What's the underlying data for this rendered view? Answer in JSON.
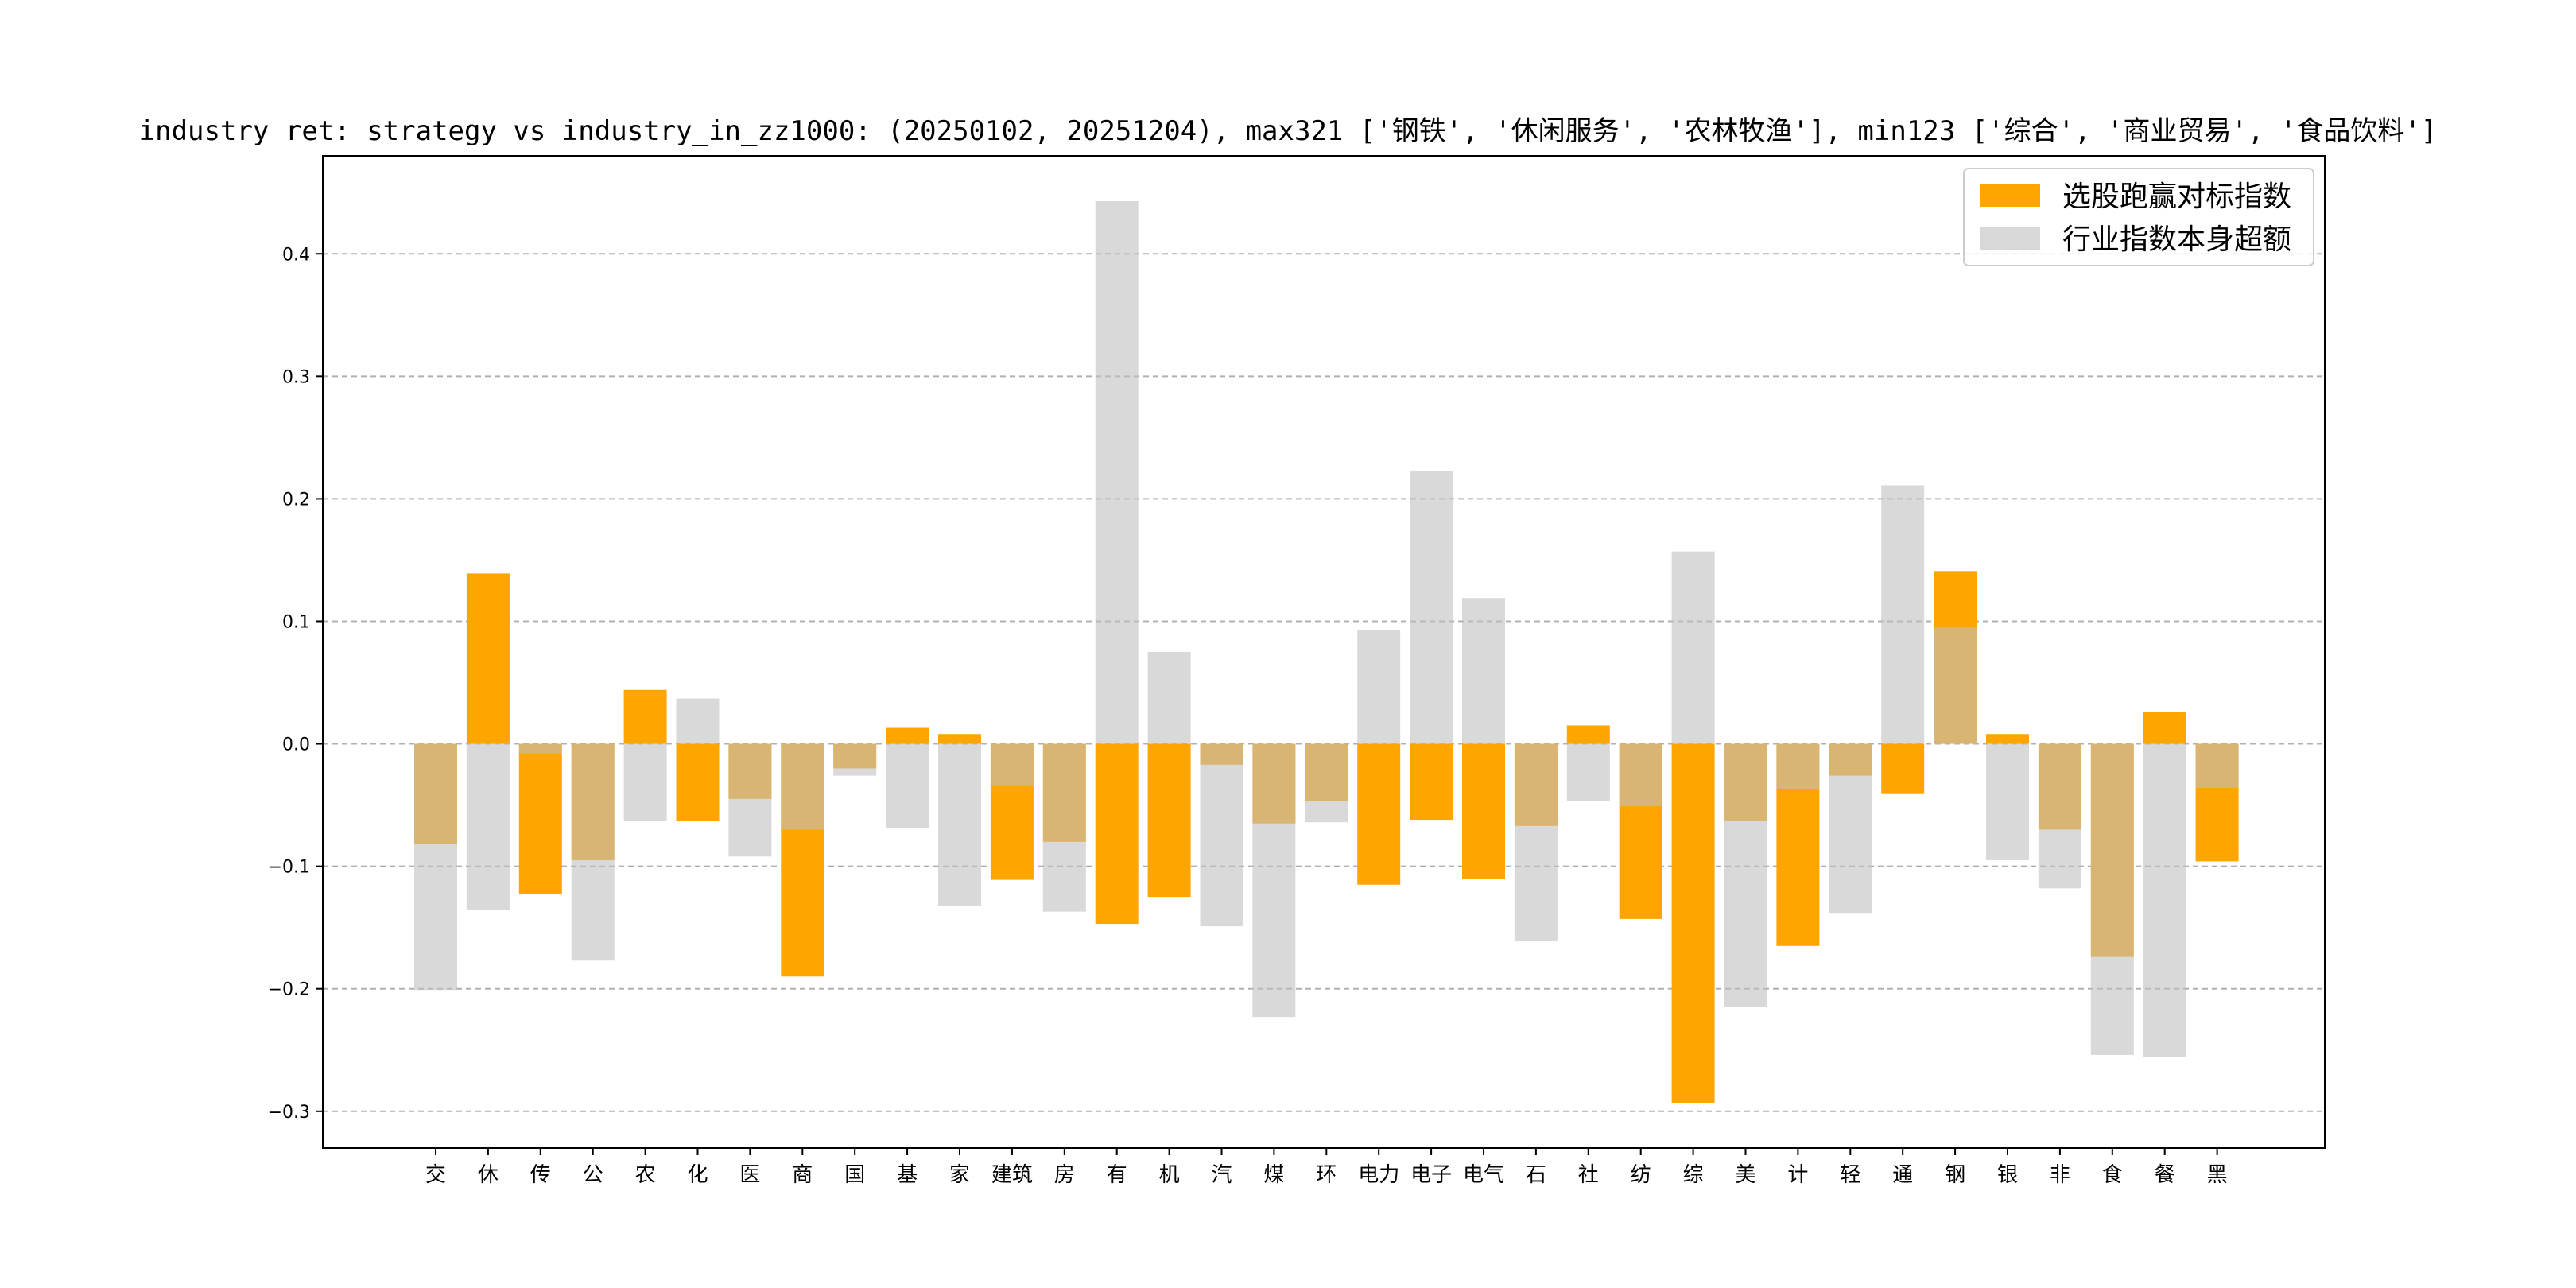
{
  "chart_data": {
    "type": "bar",
    "title": "industry ret: strategy vs industry_in_zz1000: (20250102, 20251204), max321 ['钢铁', '休闲服务', '农林牧渔'], min123 ['综合', '商业贸易', '食品饮料']",
    "xlabel": "",
    "ylabel": "",
    "ylim": [
      -0.33,
      0.48
    ],
    "yticks": [
      -0.3,
      -0.2,
      -0.1,
      0.0,
      0.1,
      0.2,
      0.3,
      0.4
    ],
    "ytick_labels": [
      "−0.3",
      "−0.2",
      "−0.1",
      "0.0",
      "0.1",
      "0.2",
      "0.3",
      "0.4"
    ],
    "grid": "horizontal dashed",
    "legend_position": "top-right",
    "categories": [
      "交",
      "休",
      "传",
      "公",
      "农",
      "化",
      "医",
      "商",
      "国",
      "基",
      "家",
      "建筑",
      "房",
      "有",
      "机",
      "汽",
      "煤",
      "环",
      "电力",
      "电子",
      "电气",
      "石",
      "社",
      "纺",
      "综",
      "美",
      "计",
      "轻",
      "通",
      "钢",
      "银",
      "非",
      "食",
      "餐",
      "黑"
    ],
    "series": [
      {
        "name": "选股跑赢对标指数",
        "color": "#FFA500",
        "values": [
          -0.082,
          0.139,
          -0.123,
          -0.095,
          0.044,
          -0.063,
          -0.045,
          -0.19,
          -0.02,
          0.013,
          0.008,
          -0.111,
          -0.08,
          -0.147,
          -0.125,
          -0.017,
          -0.065,
          -0.047,
          -0.115,
          -0.062,
          -0.11,
          -0.067,
          0.015,
          -0.143,
          -0.293,
          -0.063,
          -0.165,
          -0.026,
          -0.041,
          0.141,
          0.008,
          -0.07,
          -0.174,
          0.026,
          -0.096
        ]
      },
      {
        "name": "行业指数本身超额",
        "color": "#BFBFBF",
        "values": [
          -0.201,
          -0.136,
          -0.008,
          -0.177,
          -0.063,
          0.037,
          -0.092,
          -0.07,
          -0.026,
          -0.069,
          -0.132,
          -0.034,
          -0.137,
          0.443,
          0.075,
          -0.149,
          -0.223,
          -0.064,
          0.093,
          0.223,
          0.119,
          -0.161,
          -0.047,
          -0.051,
          0.157,
          -0.215,
          -0.037,
          -0.138,
          0.211,
          0.095,
          -0.095,
          -0.118,
          -0.254,
          -0.256,
          -0.036
        ]
      }
    ]
  }
}
